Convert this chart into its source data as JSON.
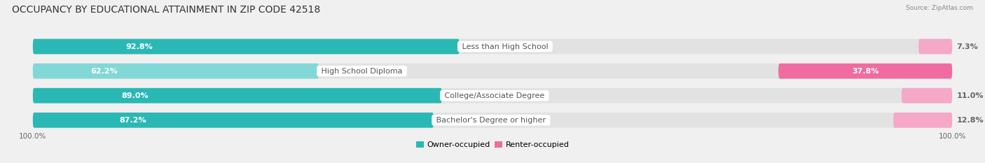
{
  "title": "OCCUPANCY BY EDUCATIONAL ATTAINMENT IN ZIP CODE 42518",
  "source": "Source: ZipAtlas.com",
  "categories": [
    "Less than High School",
    "High School Diploma",
    "College/Associate Degree",
    "Bachelor's Degree or higher"
  ],
  "owner_pct": [
    92.8,
    62.2,
    89.0,
    87.2
  ],
  "renter_pct": [
    7.3,
    37.8,
    11.0,
    12.8
  ],
  "owner_color": "#2ab8b5",
  "owner_color_light": "#82d8d6",
  "renter_color_dark": "#f06ba0",
  "renter_color_light": "#f5a8c8",
  "bg_color": "#f0f0f0",
  "bar_bg_color": "#e2e2e2",
  "title_fontsize": 10,
  "label_fontsize": 8,
  "cat_fontsize": 8,
  "axis_label_fontsize": 7.5,
  "legend_fontsize": 8,
  "left_label_pct": "100.0%",
  "right_label_pct": "100.0%"
}
